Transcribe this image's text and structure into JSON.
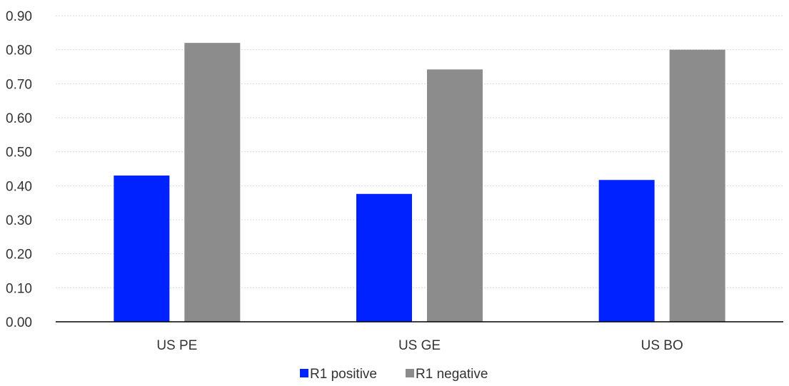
{
  "chart_data": {
    "type": "bar",
    "categories": [
      "US PE",
      "US GE",
      "US BO"
    ],
    "series": [
      {
        "name": "R1 positive",
        "color": "#0022ff",
        "values": [
          0.43,
          0.376,
          0.417
        ]
      },
      {
        "name": "R1 negative",
        "color": "#8c8c8c",
        "values": [
          0.82,
          0.742,
          0.8
        ]
      }
    ],
    "y_ticks": [
      "0.00",
      "0.10",
      "0.20",
      "0.30",
      "0.40",
      "0.50",
      "0.60",
      "0.70",
      "0.80",
      "0.90"
    ],
    "ylim": [
      0,
      0.9
    ],
    "grid": true,
    "legend_position": "bottom-center"
  }
}
